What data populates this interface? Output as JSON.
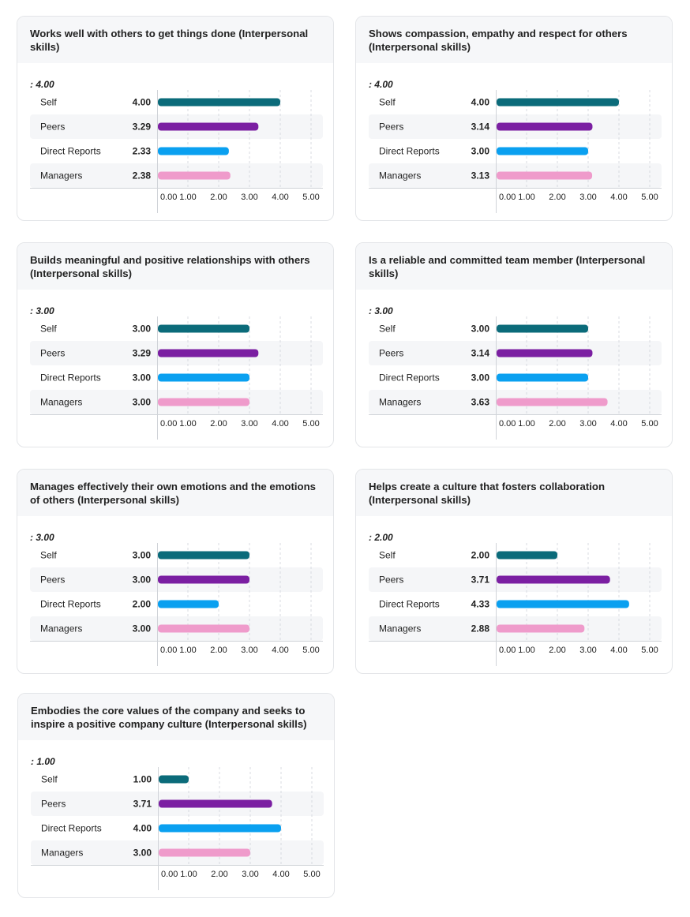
{
  "colors": {
    "Self": "#0b6b7a",
    "Peers": "#7b1fa2",
    "Direct Reports": "#0aa0f0",
    "Managers": "#ef9bcb"
  },
  "chart_data": [
    {
      "type": "bar",
      "title": "Works well with others to get things done (Interpersonal skills)",
      "average_label": ": 4.00",
      "categories": [
        "Self",
        "Peers",
        "Direct Reports",
        "Managers"
      ],
      "values": [
        4.0,
        3.29,
        2.33,
        2.38
      ],
      "value_labels": [
        "4.00",
        "3.29",
        "2.33",
        "2.38"
      ],
      "xlim": [
        0,
        5
      ],
      "ticks": [
        "0.00",
        "1.00",
        "2.00",
        "3.00",
        "4.00",
        "5.00"
      ]
    },
    {
      "type": "bar",
      "title": "Shows compassion, empathy and respect for others (Interpersonal skills)",
      "average_label": ": 4.00",
      "categories": [
        "Self",
        "Peers",
        "Direct Reports",
        "Managers"
      ],
      "values": [
        4.0,
        3.14,
        3.0,
        3.13
      ],
      "value_labels": [
        "4.00",
        "3.14",
        "3.00",
        "3.13"
      ],
      "xlim": [
        0,
        5
      ],
      "ticks": [
        "0.00",
        "1.00",
        "2.00",
        "3.00",
        "4.00",
        "5.00"
      ]
    },
    {
      "type": "bar",
      "title": "Builds meaningful and positive relationships with others (Interpersonal skills)",
      "average_label": ": 3.00",
      "categories": [
        "Self",
        "Peers",
        "Direct Reports",
        "Managers"
      ],
      "values": [
        3.0,
        3.29,
        3.0,
        3.0
      ],
      "value_labels": [
        "3.00",
        "3.29",
        "3.00",
        "3.00"
      ],
      "xlim": [
        0,
        5
      ],
      "ticks": [
        "0.00",
        "1.00",
        "2.00",
        "3.00",
        "4.00",
        "5.00"
      ]
    },
    {
      "type": "bar",
      "title": "Is a reliable and committed team member (Interpersonal skills)",
      "average_label": ": 3.00",
      "categories": [
        "Self",
        "Peers",
        "Direct Reports",
        "Managers"
      ],
      "values": [
        3.0,
        3.14,
        3.0,
        3.63
      ],
      "value_labels": [
        "3.00",
        "3.14",
        "3.00",
        "3.63"
      ],
      "xlim": [
        0,
        5
      ],
      "ticks": [
        "0.00",
        "1.00",
        "2.00",
        "3.00",
        "4.00",
        "5.00"
      ]
    },
    {
      "type": "bar",
      "title": "Manages effectively their own emotions and the emotions of others (Interpersonal skills)",
      "average_label": ": 3.00",
      "categories": [
        "Self",
        "Peers",
        "Direct Reports",
        "Managers"
      ],
      "values": [
        3.0,
        3.0,
        2.0,
        3.0
      ],
      "value_labels": [
        "3.00",
        "3.00",
        "2.00",
        "3.00"
      ],
      "xlim": [
        0,
        5
      ],
      "ticks": [
        "0.00",
        "1.00",
        "2.00",
        "3.00",
        "4.00",
        "5.00"
      ]
    },
    {
      "type": "bar",
      "title": "Helps create a culture that fosters collaboration (Interpersonal skills)",
      "average_label": ": 2.00",
      "categories": [
        "Self",
        "Peers",
        "Direct Reports",
        "Managers"
      ],
      "values": [
        2.0,
        3.71,
        4.33,
        2.88
      ],
      "value_labels": [
        "2.00",
        "3.71",
        "4.33",
        "2.88"
      ],
      "xlim": [
        0,
        5
      ],
      "ticks": [
        "0.00",
        "1.00",
        "2.00",
        "3.00",
        "4.00",
        "5.00"
      ]
    },
    {
      "type": "bar",
      "title": "Embodies the core values of the company and seeks to inspire a positive company culture (Interpersonal skills)",
      "average_label": ": 1.00",
      "categories": [
        "Self",
        "Peers",
        "Direct Reports",
        "Managers"
      ],
      "values": [
        1.0,
        3.71,
        4.0,
        3.0
      ],
      "value_labels": [
        "1.00",
        "3.71",
        "4.00",
        "3.00"
      ],
      "xlim": [
        0,
        5
      ],
      "ticks": [
        "0.00",
        "1.00",
        "2.00",
        "3.00",
        "4.00",
        "5.00"
      ]
    }
  ]
}
